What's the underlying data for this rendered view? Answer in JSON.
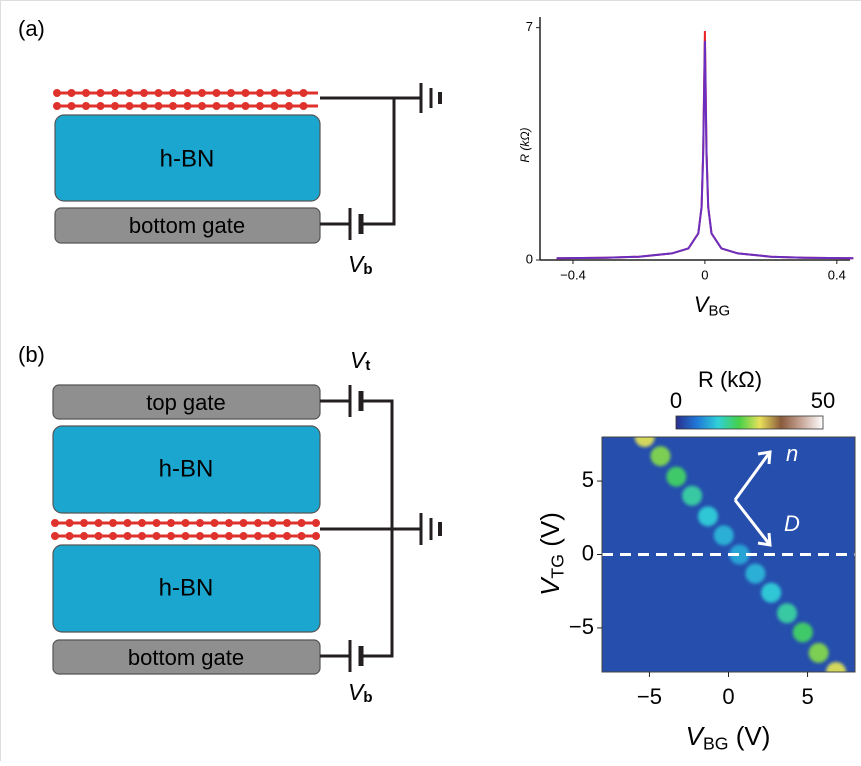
{
  "panel_a": {
    "label": "(a)",
    "layers": [
      "h-BN",
      "bottom gate"
    ],
    "voltage": {
      "symbol": "V",
      "subscript": "b"
    }
  },
  "panel_b": {
    "label": "(b)",
    "layers": [
      "top gate",
      "h-BN",
      "h-BN",
      "bottom gate"
    ],
    "top_voltage": {
      "symbol": "V",
      "subscript": "t"
    },
    "bottom_voltage": {
      "symbol": "V",
      "subscript": "b"
    }
  },
  "chart_data": [
    {
      "type": "line",
      "ylabel": "R (kΩ)",
      "xlabel": {
        "symbol": "V",
        "subscript": "BG"
      },
      "x": [
        -0.45,
        -0.3,
        -0.2,
        -0.1,
        -0.05,
        -0.02,
        -0.01,
        -0.005,
        0,
        0.005,
        0.01,
        0.02,
        0.05,
        0.1,
        0.2,
        0.3,
        0.45
      ],
      "series": [
        {
          "color": "#e8262a",
          "values": [
            0.05,
            0.07,
            0.1,
            0.2,
            0.35,
            0.8,
            1.6,
            3.3,
            6.9,
            3.3,
            1.6,
            0.8,
            0.35,
            0.2,
            0.1,
            0.07,
            0.05
          ]
        },
        {
          "color": "#6a2fc0",
          "values": [
            0.05,
            0.07,
            0.1,
            0.2,
            0.35,
            0.8,
            1.6,
            3.2,
            6.6,
            3.2,
            1.6,
            0.8,
            0.35,
            0.2,
            0.1,
            0.07,
            0.05
          ]
        }
      ],
      "xlim": [
        -0.5,
        0.44
      ],
      "ylim": [
        0,
        7.2
      ],
      "xticks": [
        {
          "value": -0.4,
          "label": "−0.4"
        },
        0,
        0.4
      ],
      "yticks": [
        0,
        7
      ]
    },
    {
      "type": "heatmap",
      "colorbar_label": "R (kΩ)",
      "zlim": [
        0,
        50
      ],
      "zticks": [
        0,
        50
      ],
      "colormap": [
        "#2a2f8e",
        "#1f78d8",
        "#2fd0d8",
        "#46d048",
        "#e9e05a",
        "#8a5a3c",
        "#c9a89a",
        "#ffffff"
      ],
      "background": 3,
      "ridge": {
        "x": [
          -5.3,
          -4.3,
          -3.3,
          -2.3,
          -1.3,
          -0.3,
          0.7,
          1.7,
          2.7,
          3.7,
          4.7,
          5.7,
          6.8
        ],
        "y": [
          8,
          6.7,
          5.3,
          4,
          2.6,
          1.3,
          0,
          -1.3,
          -2.6,
          -4,
          -5.3,
          -6.7,
          -8
        ],
        "values": [
          28,
          24,
          20,
          17,
          14,
          12,
          11,
          12,
          14,
          17,
          20,
          24,
          28
        ]
      },
      "hline": 0,
      "annotations": [
        "n",
        "D"
      ],
      "xlabel": {
        "symbol": "V",
        "subscript": "BG",
        "unit": "(V)"
      },
      "ylabel": {
        "symbol": "V",
        "subscript": "TG",
        "unit": "(V)"
      },
      "xlim": [
        -8,
        8
      ],
      "ylim": [
        -8,
        8
      ],
      "xticks": [
        {
          "value": -5,
          "label": "−5"
        },
        0,
        5
      ],
      "yticks": [
        5,
        0,
        {
          "value": -5,
          "label": "−5"
        }
      ]
    }
  ]
}
